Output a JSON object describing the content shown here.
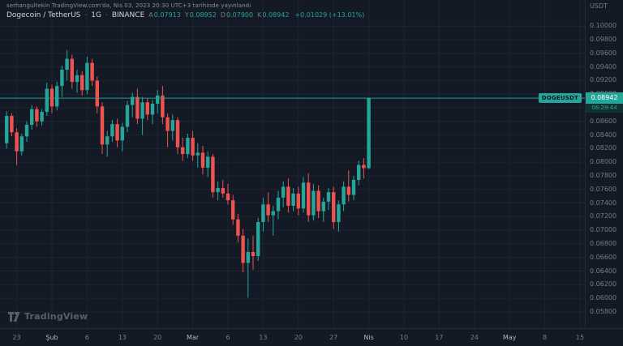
{
  "colors": {
    "bg": "#131a25",
    "grid": "#1d2433",
    "up": "#26a69a",
    "down": "#ef5350",
    "text": "#d1d4dc",
    "text_muted": "#787b86"
  },
  "header": {
    "publish_line": "serhangultekin TradingView.com'da, Nis 03, 2023 20:30 UTC+3 tarihinde yayınlandı"
  },
  "legend": {
    "symbol": "Dogecoin / TetherUS",
    "sep": "·",
    "interval": "1G",
    "exchange": "BINANCE",
    "open_label": "A",
    "open": "0.07913",
    "high_label": "Y",
    "high": "0.08952",
    "low_label": "D",
    "low": "0.07900",
    "close_label": "K",
    "close": "0.08942",
    "change": "+0.01029 (+13.01%)"
  },
  "price_scale": {
    "currency": "USDT",
    "price_label": "0.08942",
    "countdown": "06:29:44"
  },
  "price_line": {
    "tag": "DOGEUSDT"
  },
  "watermark": {
    "label": "TradingView"
  },
  "chart_data": {
    "type": "candlestick",
    "title": "Dogecoin / TetherUS · 1G · BINANCE (DOGEUSDT)",
    "ylabel": "Price (USDT)",
    "ylim": [
      0.0562,
      0.1017
    ],
    "price_line": 0.08942,
    "y_ticks": [
      "0.10000",
      "0.09800",
      "0.09600",
      "0.09400",
      "0.09200",
      "0.09000",
      "0.08800",
      "0.08600",
      "0.08400",
      "0.08200",
      "0.08000",
      "0.07800",
      "0.07600",
      "0.07400",
      "0.07200",
      "0.07000",
      "0.06800",
      "0.06600",
      "0.06400",
      "0.06200",
      "0.06000",
      "0.05800"
    ],
    "x_ticks": [
      {
        "label": "23",
        "i": 2,
        "major": false
      },
      {
        "label": "Şub",
        "i": 9,
        "major": true
      },
      {
        "label": "6",
        "i": 16,
        "major": false
      },
      {
        "label": "13",
        "i": 23,
        "major": false
      },
      {
        "label": "20",
        "i": 30,
        "major": false
      },
      {
        "label": "Mar",
        "i": 37,
        "major": true
      },
      {
        "label": "6",
        "i": 44,
        "major": false
      },
      {
        "label": "13",
        "i": 51,
        "major": false
      },
      {
        "label": "20",
        "i": 58,
        "major": false
      },
      {
        "label": "27",
        "i": 65,
        "major": false
      },
      {
        "label": "Nis",
        "i": 72,
        "major": true
      },
      {
        "label": "10",
        "i": 79,
        "major": false
      },
      {
        "label": "17",
        "i": 86,
        "major": false
      },
      {
        "label": "24",
        "i": 93,
        "major": false
      },
      {
        "label": "May",
        "i": 100,
        "major": true
      },
      {
        "label": "8",
        "i": 107,
        "major": false
      },
      {
        "label": "15",
        "i": 114,
        "major": false
      }
    ],
    "candles": [
      [
        0.0828,
        0.0875,
        0.082,
        0.0868
      ],
      [
        0.0868,
        0.0872,
        0.0838,
        0.0844
      ],
      [
        0.0844,
        0.085,
        0.0796,
        0.0816
      ],
      [
        0.0816,
        0.0842,
        0.081,
        0.0838
      ],
      [
        0.0838,
        0.086,
        0.083,
        0.0855
      ],
      [
        0.0855,
        0.0884,
        0.0848,
        0.0878
      ],
      [
        0.0878,
        0.0882,
        0.0852,
        0.086
      ],
      [
        0.086,
        0.0878,
        0.0854,
        0.0874
      ],
      [
        0.0874,
        0.0917,
        0.0868,
        0.0908
      ],
      [
        0.0908,
        0.0914,
        0.0872,
        0.0882
      ],
      [
        0.0882,
        0.0918,
        0.0876,
        0.0912
      ],
      [
        0.0912,
        0.0942,
        0.0896,
        0.0936
      ],
      [
        0.0936,
        0.0965,
        0.092,
        0.0952
      ],
      [
        0.0952,
        0.0958,
        0.0908,
        0.0918
      ],
      [
        0.0918,
        0.0936,
        0.0902,
        0.0928
      ],
      [
        0.0928,
        0.0934,
        0.0898,
        0.0906
      ],
      [
        0.0906,
        0.0955,
        0.09,
        0.0946
      ],
      [
        0.0946,
        0.0952,
        0.0912,
        0.092
      ],
      [
        0.092,
        0.0926,
        0.0872,
        0.0882
      ],
      [
        0.0882,
        0.0888,
        0.0812,
        0.0826
      ],
      [
        0.0826,
        0.0846,
        0.0808,
        0.0838
      ],
      [
        0.0838,
        0.0862,
        0.083,
        0.0856
      ],
      [
        0.0856,
        0.0864,
        0.0822,
        0.0832
      ],
      [
        0.0832,
        0.0858,
        0.0816,
        0.0852
      ],
      [
        0.0852,
        0.089,
        0.0844,
        0.0884
      ],
      [
        0.0884,
        0.0902,
        0.0866,
        0.0896
      ],
      [
        0.0896,
        0.0908,
        0.0856,
        0.0864
      ],
      [
        0.0864,
        0.0896,
        0.084,
        0.0888
      ],
      [
        0.0888,
        0.0894,
        0.0862,
        0.087
      ],
      [
        0.087,
        0.0892,
        0.0856,
        0.0886
      ],
      [
        0.0886,
        0.0906,
        0.0872,
        0.0898
      ],
      [
        0.0898,
        0.0912,
        0.0856,
        0.0866
      ],
      [
        0.0866,
        0.0872,
        0.0822,
        0.0846
      ],
      [
        0.0846,
        0.087,
        0.0832,
        0.0862
      ],
      [
        0.0862,
        0.0866,
        0.0812,
        0.0822
      ],
      [
        0.0822,
        0.0836,
        0.0802,
        0.0812
      ],
      [
        0.0812,
        0.0842,
        0.0806,
        0.0836
      ],
      [
        0.0836,
        0.0846,
        0.0802,
        0.081
      ],
      [
        0.081,
        0.0828,
        0.0792,
        0.0814
      ],
      [
        0.0814,
        0.0824,
        0.0782,
        0.0792
      ],
      [
        0.0792,
        0.0816,
        0.0778,
        0.0808
      ],
      [
        0.0808,
        0.0812,
        0.0748,
        0.0756
      ],
      [
        0.0756,
        0.0772,
        0.0744,
        0.0762
      ],
      [
        0.0762,
        0.0774,
        0.0748,
        0.0754
      ],
      [
        0.0754,
        0.0768,
        0.0738,
        0.0744
      ],
      [
        0.0744,
        0.0752,
        0.0708,
        0.0716
      ],
      [
        0.0716,
        0.0724,
        0.0682,
        0.0692
      ],
      [
        0.0692,
        0.0702,
        0.0638,
        0.0652
      ],
      [
        0.0652,
        0.0688,
        0.0601,
        0.0668
      ],
      [
        0.0668,
        0.0692,
        0.0642,
        0.0662
      ],
      [
        0.0662,
        0.0718,
        0.0655,
        0.0712
      ],
      [
        0.0712,
        0.0748,
        0.0698,
        0.0738
      ],
      [
        0.0738,
        0.0756,
        0.0712,
        0.0722
      ],
      [
        0.0722,
        0.0736,
        0.0692,
        0.0728
      ],
      [
        0.0728,
        0.0758,
        0.0716,
        0.0748
      ],
      [
        0.0748,
        0.0772,
        0.0734,
        0.0764
      ],
      [
        0.0764,
        0.0776,
        0.0726,
        0.0736
      ],
      [
        0.0736,
        0.0762,
        0.0728,
        0.0754
      ],
      [
        0.0754,
        0.0764,
        0.0722,
        0.0732
      ],
      [
        0.0732,
        0.0778,
        0.0726,
        0.077
      ],
      [
        0.077,
        0.0784,
        0.0712,
        0.0722
      ],
      [
        0.0722,
        0.0768,
        0.0714,
        0.0758
      ],
      [
        0.0758,
        0.0766,
        0.0718,
        0.0728
      ],
      [
        0.0728,
        0.0748,
        0.0712,
        0.0742
      ],
      [
        0.0742,
        0.0762,
        0.073,
        0.0756
      ],
      [
        0.0756,
        0.0764,
        0.0702,
        0.0712
      ],
      [
        0.0712,
        0.0744,
        0.0698,
        0.0738
      ],
      [
        0.0738,
        0.0772,
        0.0728,
        0.0764
      ],
      [
        0.0764,
        0.0788,
        0.0742,
        0.0752
      ],
      [
        0.0752,
        0.078,
        0.0744,
        0.0774
      ],
      [
        0.0774,
        0.0802,
        0.0766,
        0.0796
      ],
      [
        0.0796,
        0.0806,
        0.0776,
        0.07913
      ],
      [
        0.07913,
        0.08952,
        0.079,
        0.08942
      ]
    ]
  }
}
